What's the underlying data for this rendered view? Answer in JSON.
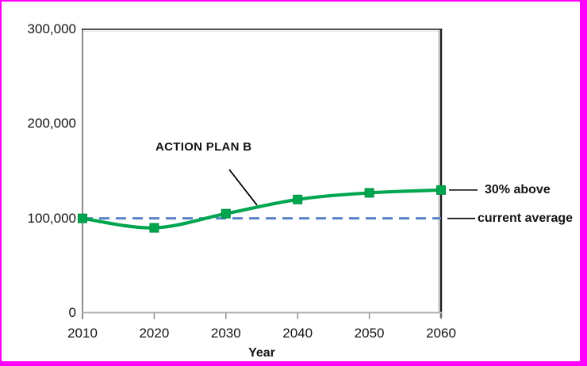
{
  "page": {
    "background": "#FFFFFF",
    "selection_border_color": "#FF00FF"
  },
  "chart_data": {
    "type": "line",
    "title": "",
    "xlabel": "Year",
    "ylabel": "",
    "grid": false,
    "xlim": [
      2010,
      2060
    ],
    "ylim": [
      0,
      300000
    ],
    "x": [
      2010,
      2020,
      2030,
      2040,
      2050,
      2060
    ],
    "xtick_labels": [
      "2010",
      "2020",
      "2030",
      "2040",
      "2050",
      "2060"
    ],
    "yticks": [
      {
        "value": 300000,
        "label": "300,000"
      },
      {
        "value": 200000,
        "label": "200,000"
      },
      {
        "value": 100000,
        "label": "100,000"
      },
      {
        "value": 0,
        "label": "0"
      }
    ],
    "series": [
      {
        "name": "ACTION PLAN B",
        "type": "smooth-line",
        "color": "#00A64F",
        "marker": "square",
        "marker_color": "#00A64F",
        "values": [
          100000,
          90000,
          105000,
          120000,
          127000,
          130000
        ]
      }
    ],
    "reference_line": {
      "label": "current average",
      "value": 100000,
      "color": "#5B84C6",
      "style": "dashed"
    },
    "annotations": {
      "series_label": {
        "text": "ACTION PLAN B"
      },
      "above_label": {
        "text": "30% above"
      },
      "reference_label": {
        "text": "current average"
      }
    }
  }
}
